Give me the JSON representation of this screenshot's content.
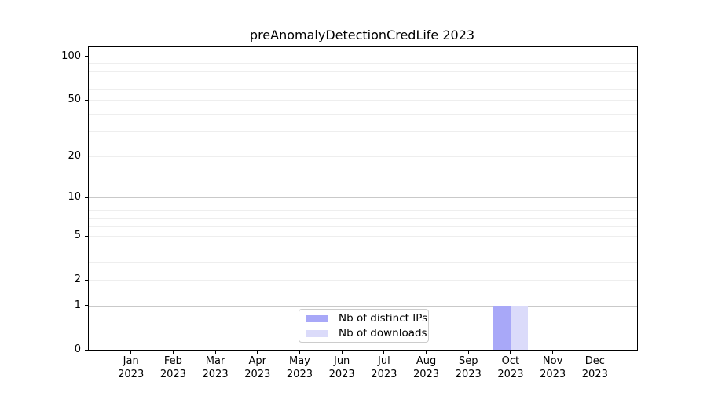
{
  "chart_data": {
    "type": "bar",
    "title": "preAnomalyDetectionCredLife 2023",
    "categories": [
      "Jan 2023",
      "Feb 2023",
      "Mar 2023",
      "Apr 2023",
      "May 2023",
      "Jun 2023",
      "Jul 2023",
      "Aug 2023",
      "Sep 2023",
      "Oct 2023",
      "Nov 2023",
      "Dec 2023"
    ],
    "series": [
      {
        "name": "Nb of distinct IPs",
        "color": "#a8a8f8",
        "values": [
          0,
          0,
          0,
          0,
          0,
          0,
          0,
          0,
          0,
          1,
          0,
          0
        ]
      },
      {
        "name": "Nb of downloads",
        "color": "#dbdbfa",
        "values": [
          0,
          0,
          0,
          0,
          0,
          0,
          0,
          0,
          0,
          1,
          0,
          0
        ]
      }
    ],
    "xlabel": "",
    "ylabel": "",
    "yscale": "log1p",
    "ylim": [
      0,
      116
    ],
    "y_tick_labels": [
      0,
      1,
      2,
      5,
      10,
      20,
      50,
      100
    ],
    "y_major_gridlines": [
      1,
      10,
      100
    ],
    "y_minor_gridlines": [
      2,
      3,
      4,
      5,
      6,
      7,
      8,
      9,
      20,
      30,
      40,
      50,
      60,
      70,
      80,
      90
    ],
    "grid": true,
    "legend": {
      "position": "lower center inside",
      "border_color": "#cccccc"
    }
  }
}
